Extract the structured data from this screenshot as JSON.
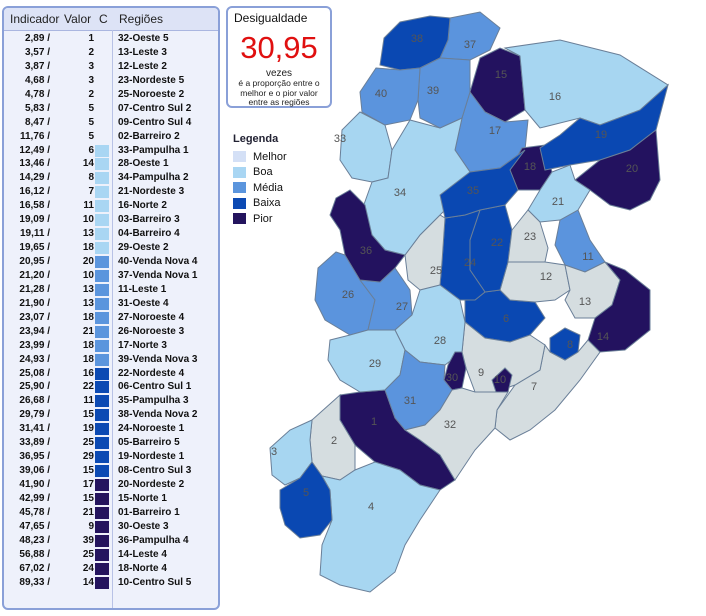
{
  "table": {
    "headers": {
      "indicator": "Indicador",
      "value": "Valor",
      "class": "C",
      "region": "Regiões"
    },
    "rows": [
      {
        "ind": "2,89 /",
        "val": "1",
        "c": 0,
        "reg": "32-Oeste 5"
      },
      {
        "ind": "3,57 /",
        "val": "2",
        "c": 0,
        "reg": "13-Leste 3"
      },
      {
        "ind": "3,87 /",
        "val": "3",
        "c": 0,
        "reg": "12-Leste 2"
      },
      {
        "ind": "4,68 /",
        "val": "3",
        "c": 0,
        "reg": "23-Nordeste 5"
      },
      {
        "ind": "4,78 /",
        "val": "2",
        "c": 0,
        "reg": "25-Noroeste 2"
      },
      {
        "ind": "5,83 /",
        "val": "5",
        "c": 0,
        "reg": "07-Centro Sul 2"
      },
      {
        "ind": "8,47 /",
        "val": "5",
        "c": 0,
        "reg": "09-Centro Sul 4"
      },
      {
        "ind": "11,76 /",
        "val": "5",
        "c": 0,
        "reg": "02-Barreiro 2"
      },
      {
        "ind": "12,49 /",
        "val": "6",
        "c": 1,
        "reg": "33-Pampulha 1"
      },
      {
        "ind": "13,46 /",
        "val": "14",
        "c": 1,
        "reg": "28-Oeste 1"
      },
      {
        "ind": "14,29 /",
        "val": "8",
        "c": 1,
        "reg": "34-Pampulha 2"
      },
      {
        "ind": "16,12 /",
        "val": "7",
        "c": 1,
        "reg": "21-Nordeste 3"
      },
      {
        "ind": "16,58 /",
        "val": "11",
        "c": 1,
        "reg": "16-Norte 2"
      },
      {
        "ind": "19,09 /",
        "val": "10",
        "c": 1,
        "reg": "03-Barreiro 3"
      },
      {
        "ind": "19,11 /",
        "val": "13",
        "c": 1,
        "reg": "04-Barreiro 4"
      },
      {
        "ind": "19,65 /",
        "val": "18",
        "c": 1,
        "reg": "29-Oeste 2"
      },
      {
        "ind": "20,95 /",
        "val": "20",
        "c": 2,
        "reg": "40-Venda Nova 4"
      },
      {
        "ind": "21,20 /",
        "val": "10",
        "c": 2,
        "reg": "37-Venda Nova 1"
      },
      {
        "ind": "21,28 /",
        "val": "13",
        "c": 2,
        "reg": "11-Leste 1"
      },
      {
        "ind": "21,90 /",
        "val": "13",
        "c": 2,
        "reg": "31-Oeste 4"
      },
      {
        "ind": "23,07 /",
        "val": "18",
        "c": 2,
        "reg": "27-Noroeste 4"
      },
      {
        "ind": "23,94 /",
        "val": "21",
        "c": 2,
        "reg": "26-Noroeste 3"
      },
      {
        "ind": "23,99 /",
        "val": "18",
        "c": 2,
        "reg": "17-Norte 3"
      },
      {
        "ind": "24,93 /",
        "val": "18",
        "c": 2,
        "reg": "39-Venda Nova 3"
      },
      {
        "ind": "25,08 /",
        "val": "16",
        "c": 3,
        "reg": "22-Nordeste 4"
      },
      {
        "ind": "25,90 /",
        "val": "22",
        "c": 3,
        "reg": "06-Centro Sul 1"
      },
      {
        "ind": "26,68 /",
        "val": "11",
        "c": 3,
        "reg": "35-Pampulha 3"
      },
      {
        "ind": "29,79 /",
        "val": "15",
        "c": 3,
        "reg": "38-Venda Nova 2"
      },
      {
        "ind": "31,41 /",
        "val": "19",
        "c": 3,
        "reg": "24-Noroeste 1"
      },
      {
        "ind": "33,89 /",
        "val": "25",
        "c": 3,
        "reg": "05-Barreiro 5"
      },
      {
        "ind": "36,95 /",
        "val": "29",
        "c": 3,
        "reg": "19-Nordeste 1"
      },
      {
        "ind": "39,06 /",
        "val": "15",
        "c": 3,
        "reg": "08-Centro Sul 3"
      },
      {
        "ind": "41,90 /",
        "val": "17",
        "c": 4,
        "reg": "20-Nordeste 2"
      },
      {
        "ind": "42,99 /",
        "val": "15",
        "c": 4,
        "reg": "15-Norte 1"
      },
      {
        "ind": "45,78 /",
        "val": "21",
        "c": 4,
        "reg": "01-Barreiro 1"
      },
      {
        "ind": "47,65 /",
        "val": "9",
        "c": 4,
        "reg": "30-Oeste 3"
      },
      {
        "ind": "48,23 /",
        "val": "39",
        "c": 4,
        "reg": "36-Pampulha 4"
      },
      {
        "ind": "56,88 /",
        "val": "25",
        "c": 4,
        "reg": "14-Leste 4"
      },
      {
        "ind": "67,02 /",
        "val": "24",
        "c": 4,
        "reg": "18-Norte 4"
      },
      {
        "ind": "89,33 /",
        "val": "14",
        "c": 4,
        "reg": "10-Centro Sul 5"
      }
    ]
  },
  "inequality": {
    "title": "Desigualdade",
    "value": "30,95",
    "unit": "vezes",
    "description": "é a proporção entre o melhor e o pior valor entre as regiões"
  },
  "legend": {
    "title": "Legenda",
    "items": [
      {
        "label": "Melhor",
        "color": "#d4e0f6"
      },
      {
        "label": "Boa",
        "color": "#a9d6f3"
      },
      {
        "label": "Média",
        "color": "#5b95dd"
      },
      {
        "label": "Baixa",
        "color": "#0c4ab3"
      },
      {
        "label": "Pior",
        "color": "#24145e"
      }
    ]
  },
  "map_colors": {
    "melhor": "#d5dde0",
    "boa": "#a7d6f1",
    "media": "#5b94dd",
    "baixa": "#0a48b2",
    "pior": "#23125f",
    "border": "#6a7f98"
  },
  "map_regions": [
    {
      "id": "1",
      "c": 4
    },
    {
      "id": "2",
      "c": 0
    },
    {
      "id": "3",
      "c": 1
    },
    {
      "id": "4",
      "c": 1
    },
    {
      "id": "5",
      "c": 3
    },
    {
      "id": "6",
      "c": 3
    },
    {
      "id": "7",
      "c": 0
    },
    {
      "id": "8",
      "c": 3
    },
    {
      "id": "9",
      "c": 0
    },
    {
      "id": "10",
      "c": 4
    },
    {
      "id": "11",
      "c": 2
    },
    {
      "id": "12",
      "c": 0
    },
    {
      "id": "13",
      "c": 0
    },
    {
      "id": "14",
      "c": 4
    },
    {
      "id": "15",
      "c": 4
    },
    {
      "id": "16",
      "c": 1
    },
    {
      "id": "17",
      "c": 2
    },
    {
      "id": "18",
      "c": 4
    },
    {
      "id": "19",
      "c": 3
    },
    {
      "id": "20",
      "c": 4
    },
    {
      "id": "21",
      "c": 1
    },
    {
      "id": "22",
      "c": 3
    },
    {
      "id": "23",
      "c": 0
    },
    {
      "id": "24",
      "c": 3
    },
    {
      "id": "25",
      "c": 0
    },
    {
      "id": "26",
      "c": 2
    },
    {
      "id": "27",
      "c": 2
    },
    {
      "id": "28",
      "c": 1
    },
    {
      "id": "29",
      "c": 1
    },
    {
      "id": "30",
      "c": 4
    },
    {
      "id": "31",
      "c": 2
    },
    {
      "id": "32",
      "c": 0
    },
    {
      "id": "33",
      "c": 1
    },
    {
      "id": "34",
      "c": 1
    },
    {
      "id": "35",
      "c": 3
    },
    {
      "id": "36",
      "c": 4
    },
    {
      "id": "37",
      "c": 2
    },
    {
      "id": "38",
      "c": 3
    },
    {
      "id": "39",
      "c": 2
    },
    {
      "id": "40",
      "c": 2
    }
  ]
}
